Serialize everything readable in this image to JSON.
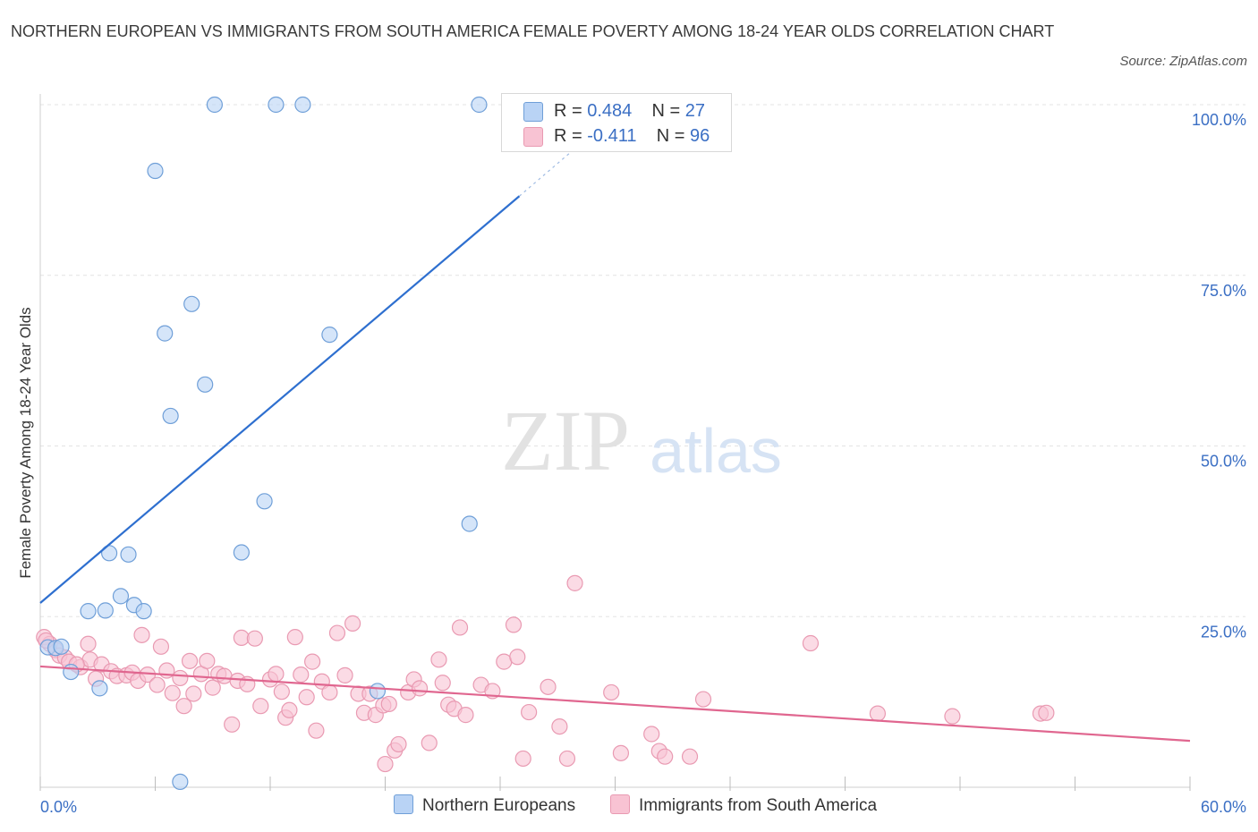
{
  "title": "NORTHERN EUROPEAN VS IMMIGRANTS FROM SOUTH AMERICA FEMALE POVERTY AMONG 18-24 YEAR OLDS CORRELATION CHART",
  "source": "Source: ZipAtlas.com",
  "watermark": {
    "zip": "ZIP",
    "atlas": "atlas"
  },
  "legend": {
    "r_label": "R =",
    "n_label": "N =",
    "series1": {
      "r": "0.484",
      "n": "27"
    },
    "series2": {
      "r": "-0.411",
      "n": "96"
    }
  },
  "colors": {
    "blue_fill": "#b9d3f5",
    "blue_stroke": "#6f9fd8",
    "blue_line": "#2e6fcf",
    "pink_fill": "#f8c3d3",
    "pink_stroke": "#e99ab2",
    "pink_line": "#e0668f",
    "axis_label": "#3b6fc4",
    "grid": "#e3e3e3"
  },
  "chart_data": {
    "type": "scatter",
    "title": "NORTHERN EUROPEAN VS IMMIGRANTS FROM SOUTH AMERICA FEMALE POVERTY AMONG 18-24 YEAR OLDS CORRELATION CHART",
    "xlabel": "",
    "ylabel": "Female Poverty Among 18-24 Year Olds",
    "xlim": [
      0,
      60
    ],
    "ylim": [
      0,
      100
    ],
    "x_tick_labels": [
      "0.0%",
      "60.0%"
    ],
    "y_ticks": [
      25,
      50,
      75,
      100
    ],
    "y_tick_labels": [
      "25.0%",
      "50.0%",
      "75.0%",
      "100.0%"
    ],
    "grid": true,
    "legend_position": "top-center",
    "series": [
      {
        "name": "Northern Europeans",
        "r": 0.484,
        "n": 27,
        "trend": {
          "x0": 0,
          "y0": 27.0,
          "x1": 25.0,
          "y1": 86.6,
          "dashed_to_x": 28.5,
          "dashed_to_y": 95.0
        },
        "points": [
          [
            9.1,
            100
          ],
          [
            12.3,
            100
          ],
          [
            13.7,
            100
          ],
          [
            22.9,
            100
          ],
          [
            6.0,
            90.3
          ],
          [
            7.9,
            70.8
          ],
          [
            6.5,
            66.5
          ],
          [
            15.1,
            66.3
          ],
          [
            8.6,
            59.0
          ],
          [
            6.8,
            54.4
          ],
          [
            11.7,
            41.9
          ],
          [
            22.4,
            38.6
          ],
          [
            3.6,
            34.3
          ],
          [
            4.6,
            34.1
          ],
          [
            10.5,
            34.4
          ],
          [
            4.2,
            28.0
          ],
          [
            4.9,
            26.7
          ],
          [
            5.4,
            25.8
          ],
          [
            2.5,
            25.8
          ],
          [
            3.4,
            25.9
          ],
          [
            0.4,
            20.5
          ],
          [
            0.8,
            20.4
          ],
          [
            1.1,
            20.6
          ],
          [
            1.6,
            16.9
          ],
          [
            3.1,
            14.5
          ],
          [
            17.6,
            14.1
          ],
          [
            7.3,
            0.8
          ]
        ]
      },
      {
        "name": "Immigrants from South America",
        "r": -0.411,
        "n": 96,
        "trend": {
          "x0": 0,
          "y0": 17.7,
          "x1": 60,
          "y1": 6.8
        },
        "points": [
          [
            0.2,
            22.0
          ],
          [
            0.5,
            21.0
          ],
          [
            0.8,
            20.1
          ],
          [
            1.0,
            19.3
          ],
          [
            1.3,
            19.0
          ],
          [
            1.5,
            18.4
          ],
          [
            2.1,
            17.6
          ],
          [
            2.6,
            18.7
          ],
          [
            2.5,
            21.0
          ],
          [
            3.2,
            18.0
          ],
          [
            3.7,
            17.0
          ],
          [
            4.0,
            16.3
          ],
          [
            2.9,
            15.9
          ],
          [
            4.5,
            16.4
          ],
          [
            4.8,
            16.8
          ],
          [
            5.1,
            15.6
          ],
          [
            5.3,
            22.3
          ],
          [
            5.6,
            16.5
          ],
          [
            6.1,
            15.0
          ],
          [
            6.3,
            20.6
          ],
          [
            6.6,
            17.1
          ],
          [
            6.9,
            13.8
          ],
          [
            7.3,
            16.0
          ],
          [
            7.5,
            11.9
          ],
          [
            7.8,
            18.5
          ],
          [
            8.0,
            13.7
          ],
          [
            8.4,
            16.6
          ],
          [
            8.7,
            18.5
          ],
          [
            9.0,
            14.6
          ],
          [
            9.3,
            16.6
          ],
          [
            9.6,
            16.3
          ],
          [
            10.0,
            9.2
          ],
          [
            10.3,
            15.6
          ],
          [
            10.5,
            21.9
          ],
          [
            10.8,
            15.1
          ],
          [
            11.2,
            21.8
          ],
          [
            11.5,
            11.9
          ],
          [
            12.0,
            15.8
          ],
          [
            12.3,
            16.6
          ],
          [
            12.6,
            14.0
          ],
          [
            12.8,
            10.2
          ],
          [
            13.0,
            11.3
          ],
          [
            13.3,
            22.0
          ],
          [
            13.6,
            16.5
          ],
          [
            13.9,
            13.2
          ],
          [
            14.2,
            18.4
          ],
          [
            14.4,
            8.3
          ],
          [
            14.7,
            15.5
          ],
          [
            15.1,
            13.9
          ],
          [
            15.5,
            22.6
          ],
          [
            15.9,
            16.4
          ],
          [
            16.3,
            24.0
          ],
          [
            16.6,
            13.7
          ],
          [
            16.9,
            10.9
          ],
          [
            17.2,
            13.7
          ],
          [
            17.5,
            10.6
          ],
          [
            17.9,
            12.0
          ],
          [
            18.2,
            12.2
          ],
          [
            18.0,
            3.4
          ],
          [
            18.5,
            5.4
          ],
          [
            18.7,
            6.3
          ],
          [
            19.2,
            13.9
          ],
          [
            19.5,
            15.8
          ],
          [
            19.8,
            14.5
          ],
          [
            20.3,
            6.5
          ],
          [
            20.8,
            18.7
          ],
          [
            21.0,
            15.3
          ],
          [
            21.3,
            12.1
          ],
          [
            21.6,
            11.5
          ],
          [
            21.9,
            23.4
          ],
          [
            22.2,
            10.6
          ],
          [
            23.0,
            15.0
          ],
          [
            23.6,
            14.1
          ],
          [
            24.2,
            18.4
          ],
          [
            24.7,
            23.8
          ],
          [
            24.9,
            19.1
          ],
          [
            25.2,
            4.2
          ],
          [
            25.5,
            11.0
          ],
          [
            26.5,
            14.7
          ],
          [
            27.1,
            8.9
          ],
          [
            27.5,
            4.2
          ],
          [
            27.9,
            29.9
          ],
          [
            29.8,
            13.9
          ],
          [
            30.3,
            5.0
          ],
          [
            31.9,
            7.8
          ],
          [
            32.3,
            5.3
          ],
          [
            32.6,
            4.5
          ],
          [
            33.9,
            4.5
          ],
          [
            34.6,
            12.9
          ],
          [
            40.2,
            21.1
          ],
          [
            43.7,
            10.8
          ],
          [
            47.6,
            10.4
          ],
          [
            52.2,
            10.8
          ],
          [
            52.5,
            10.9
          ],
          [
            1.9,
            18.0
          ],
          [
            0.3,
            21.5
          ]
        ]
      }
    ]
  }
}
